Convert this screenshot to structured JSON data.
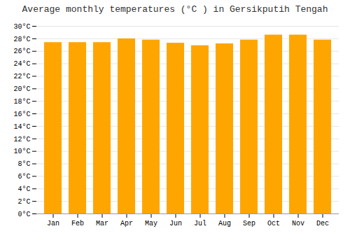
{
  "chart_data": {
    "type": "bar",
    "title": "Average monthly temperatures (°C ) in Gersikputih Tengah",
    "categories": [
      "Jan",
      "Feb",
      "Mar",
      "Apr",
      "May",
      "Jun",
      "Jul",
      "Aug",
      "Sep",
      "Oct",
      "Nov",
      "Dec"
    ],
    "values": [
      27.4,
      27.4,
      27.4,
      28.0,
      27.8,
      27.3,
      26.9,
      27.2,
      27.8,
      28.6,
      28.6,
      27.8
    ],
    "color": "#FFA500",
    "ylim": [
      0,
      30
    ],
    "yticks": [
      {
        "value": 0,
        "label": "0°C"
      },
      {
        "value": 2,
        "label": "2°C"
      },
      {
        "value": 4,
        "label": "4°C"
      },
      {
        "value": 6,
        "label": "6°C"
      },
      {
        "value": 8,
        "label": "8°C"
      },
      {
        "value": 10,
        "label": "10°C"
      },
      {
        "value": 12,
        "label": "12°C"
      },
      {
        "value": 14,
        "label": "14°C"
      },
      {
        "value": 16,
        "label": "16°C"
      },
      {
        "value": 18,
        "label": "18°C"
      },
      {
        "value": 20,
        "label": "20°C"
      },
      {
        "value": 22,
        "label": "22°C"
      },
      {
        "value": 24,
        "label": "24°C"
      },
      {
        "value": 26,
        "label": "26°C"
      },
      {
        "value": 28,
        "label": "28°C"
      },
      {
        "value": 30,
        "label": "30°C"
      }
    ],
    "grid": true
  }
}
